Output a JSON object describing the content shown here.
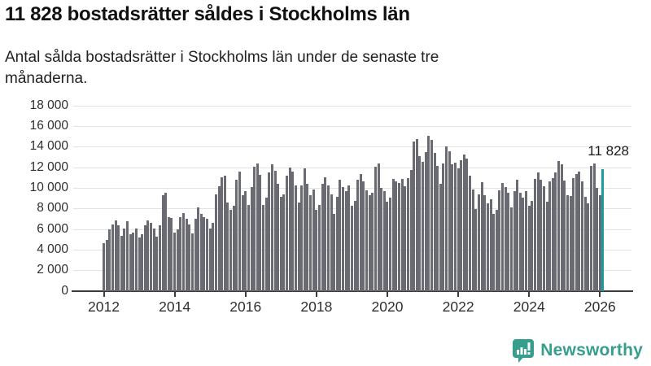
{
  "header": {
    "title": "11 828 bostadsrätter såldes i Stockholms län",
    "subtitle_line1": "Antal sålda bostadsrätter i Stockholms län under de senaste tre",
    "subtitle_line2": "månaderna."
  },
  "annotation": {
    "label": "11 828"
  },
  "footer": {
    "brand": "Newsworthy"
  },
  "colors": {
    "bar": "#6a6a73",
    "highlight": "#1b9da0",
    "grid": "#e3e3e3",
    "axis": "#3c3c3c",
    "logo": "#369e8c"
  },
  "chart_data": {
    "type": "bar",
    "title": "11 828 bostadsrätter såldes i Stockholms län",
    "subtitle": "Antal sålda bostadsrätter i Stockholms län under de senaste tre månaderna.",
    "xlabel": "",
    "ylabel": "",
    "x_start_month": "2012-01",
    "x_end_month": "2026-02",
    "frequency": "monthly",
    "ylim": [
      0,
      18000
    ],
    "grid": "horizontal",
    "y_ticks": [
      0,
      2000,
      4000,
      6000,
      8000,
      10000,
      12000,
      14000,
      16000,
      18000
    ],
    "y_tick_labels": [
      "0",
      "2 000",
      "4 000",
      "6 000",
      "8 000",
      "10 000",
      "12 000",
      "14 000",
      "16 000",
      "18 000"
    ],
    "x_tick_years": [
      2012,
      2014,
      2016,
      2018,
      2020,
      2022,
      2024,
      2026
    ],
    "values": [
      4700,
      5000,
      6000,
      6500,
      6900,
      6400,
      5400,
      6100,
      6800,
      5500,
      5700,
      6100,
      5200,
      5500,
      6400,
      6900,
      6600,
      6100,
      5300,
      6400,
      9300,
      9600,
      7200,
      7100,
      5700,
      6000,
      7200,
      7600,
      7000,
      6500,
      5600,
      7000,
      8100,
      7500,
      7200,
      7000,
      6100,
      6600,
      9400,
      10200,
      11100,
      11200,
      8600,
      7900,
      8300,
      10800,
      11600,
      9300,
      9700,
      8400,
      10100,
      12100,
      12400,
      11300,
      8400,
      9100,
      11500,
      12300,
      11700,
      10400,
      9200,
      9400,
      11200,
      12000,
      11600,
      10300,
      8600,
      10300,
      11900,
      10400,
      9300,
      9900,
      7900,
      8400,
      10400,
      11100,
      10300,
      9400,
      7500,
      9200,
      10800,
      10100,
      9700,
      10300,
      8300,
      8800,
      10800,
      11400,
      10700,
      9800,
      9300,
      9600,
      12100,
      12400,
      10000,
      9700,
      8700,
      9100,
      10900,
      10700,
      10500,
      10900,
      10200,
      11000,
      11800,
      14500,
      14800,
      13100,
      12600,
      13500,
      15100,
      14700,
      13400,
      12200,
      10400,
      12400,
      14100,
      13600,
      12300,
      12500,
      11900,
      12700,
      13300,
      12900,
      11200,
      9900,
      8000,
      9400,
      10600,
      9300,
      8500,
      8900,
      7500,
      7900,
      9800,
      10500,
      10100,
      9600,
      8100,
      9700,
      10800,
      9600,
      9100,
      9700,
      8300,
      8800,
      10900,
      11500,
      10800,
      10200,
      8700,
      10700,
      11000,
      11550,
      12650,
      12350,
      10750,
      9300,
      9250,
      10950,
      11400,
      11600,
      10700,
      9150,
      8500,
      12150,
      12400,
      10000,
      9300,
      11828
    ],
    "highlight": {
      "index": 169,
      "month": "2026-02",
      "value": 11828,
      "label": "11 828"
    },
    "legend": "none"
  }
}
